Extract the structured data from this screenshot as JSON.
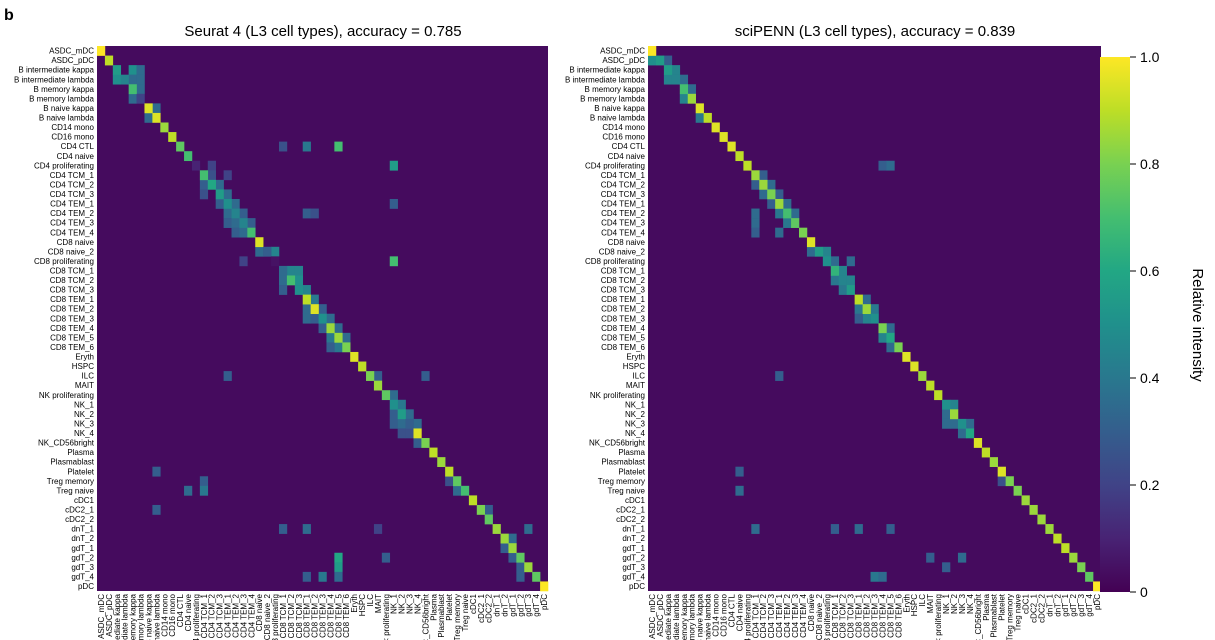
{
  "panel_label": "b",
  "colorbar": {
    "label": "Relative intensity",
    "ticks": [
      "1.0",
      "0.8",
      "0.6",
      "0.4",
      "0.2",
      "0"
    ],
    "tick_values": [
      1.0,
      0.8,
      0.6,
      0.4,
      0.2,
      0.0
    ],
    "range": [
      0,
      1
    ],
    "colormap": "viridis"
  },
  "chart_data": [
    {
      "type": "heatmap",
      "title": "Seurat 4 (L3 cell types), accuracy = 0.785",
      "labels": [
        "ASDC_mDC",
        "ASDC_pDC",
        "B intermediate kappa",
        "B intermediate lambda",
        "B memory kappa",
        "B memory lambda",
        "B naive kappa",
        "B naive lambda",
        "CD14 mono",
        "CD16 mono",
        "CD4 CTL",
        "CD4 naive",
        "CD4 proliferating",
        "CD4 TCM_1",
        "CD4 TCM_2",
        "CD4 TCM_3",
        "CD4 TEM_1",
        "CD4 TEM_2",
        "CD4 TEM_3",
        "CD4 TEM_4",
        "CD8 naive",
        "CD8 naive_2",
        "CD8 proliferating",
        "CD8 TCM_1",
        "CD8 TCM_2",
        "CD8 TCM_3",
        "CD8 TEM_1",
        "CD8 TEM_2",
        "CD8 TEM_3",
        "CD8 TEM_4",
        "CD8 TEM_5",
        "CD8 TEM_6",
        "Eryth",
        "HSPC",
        "ILC",
        "MAIT",
        "NK proliferating",
        "NK_1",
        "NK_2",
        "NK_3",
        "NK_4",
        "NK_CD56bright",
        "Plasma",
        "Plasmablast",
        "Platelet",
        "Treg memory",
        "Treg naive",
        "cDC1",
        "cDC2_1",
        "cDC2_2",
        "dnT_1",
        "dnT_2",
        "gdT_1",
        "gdT_2",
        "gdT_3",
        "gdT_4",
        "pDC"
      ],
      "xlabels_visible": [
        "ASDC_mDC",
        "ASDC_pDC",
        "ediate kappa",
        "ediate lambda",
        "emory kappa",
        "emory lambda",
        "3 naive kappa",
        "naive lambda",
        "CD14 mono",
        "CD16 mono",
        "CD4 CTL",
        "CD4 naive",
        "4 proliferating",
        "CD4 TCM_1",
        "CD4 TCM_2",
        "CD4 TCM_3",
        "CD4 TEM_1",
        "CD4 TEM_2",
        "CD4 TEM_3",
        "CD4 TEM_4",
        "CD8 naive",
        "CD8 naive_2",
        "3 proliferating",
        "CD8 TCM_1",
        "CD8 TCM_2",
        "CD8 TCM_3",
        "CD8 TEM_1",
        "CD8 TEM_2",
        "CD8 TEM_3",
        "CD8 TEM_4",
        "CD8 TEM_5",
        "CD8 TEM_6",
        "Eryth",
        "HSPC",
        "ILC",
        "MAIT",
        "< proliferating",
        "NK_1",
        "NK_2",
        "NK_3",
        "NK_4",
        "<_CD56bright",
        "Plasma",
        "Plasmablast",
        "Platelet",
        "Treg memory",
        "Treg naive",
        "cDC1",
        "cDC2_1",
        "cDC2_2",
        "dnT_1",
        "dnT_2",
        "gdT_1",
        "gdT_2",
        "gdT_3",
        "gdT_4",
        "pDC"
      ],
      "diagonal": [
        1.0,
        0.9,
        0.55,
        0.45,
        0.7,
        0.2,
        0.95,
        0.95,
        0.85,
        0.9,
        0.75,
        0.7,
        0.1,
        0.7,
        0.6,
        0.55,
        0.5,
        0.45,
        0.45,
        0.7,
        0.95,
        0.3,
        0.05,
        0.35,
        0.7,
        0.5,
        0.9,
        0.95,
        0.5,
        0.85,
        0.85,
        0.8,
        0.95,
        0.9,
        0.8,
        0.85,
        0.75,
        0.5,
        0.55,
        0.3,
        0.95,
        0.8,
        0.9,
        0.85,
        0.9,
        0.75,
        0.7,
        0.9,
        0.8,
        0.75,
        0.85,
        0.85,
        0.85,
        0.75,
        0.85,
        0.75,
        1.0
      ],
      "offdiag": [
        [
          2,
          4,
          0.5
        ],
        [
          2,
          5,
          0.35
        ],
        [
          3,
          2,
          0.5
        ],
        [
          3,
          4,
          0.35
        ],
        [
          3,
          5,
          0.35
        ],
        [
          4,
          5,
          0.35
        ],
        [
          5,
          4,
          0.35
        ],
        [
          6,
          7,
          0.35
        ],
        [
          7,
          6,
          0.35
        ],
        [
          10,
          23,
          0.25
        ],
        [
          10,
          26,
          0.4
        ],
        [
          10,
          30,
          0.7
        ],
        [
          12,
          37,
          0.55
        ],
        [
          12,
          14,
          0.2
        ],
        [
          13,
          14,
          0.25
        ],
        [
          13,
          16,
          0.2
        ],
        [
          14,
          13,
          0.3
        ],
        [
          14,
          15,
          0.35
        ],
        [
          15,
          13,
          0.25
        ],
        [
          15,
          16,
          0.35
        ],
        [
          16,
          15,
          0.3
        ],
        [
          16,
          17,
          0.35
        ],
        [
          16,
          37,
          0.3
        ],
        [
          17,
          16,
          0.35
        ],
        [
          17,
          18,
          0.3
        ],
        [
          17,
          26,
          0.3
        ],
        [
          17,
          27,
          0.25
        ],
        [
          18,
          16,
          0.3
        ],
        [
          18,
          17,
          0.35
        ],
        [
          18,
          19,
          0.3
        ],
        [
          19,
          17,
          0.3
        ],
        [
          19,
          18,
          0.35
        ],
        [
          21,
          20,
          0.35
        ],
        [
          21,
          22,
          0.45
        ],
        [
          22,
          37,
          0.7
        ],
        [
          22,
          18,
          0.2
        ],
        [
          23,
          24,
          0.45
        ],
        [
          23,
          25,
          0.45
        ],
        [
          24,
          23,
          0.35
        ],
        [
          24,
          25,
          0.5
        ],
        [
          25,
          23,
          0.3
        ],
        [
          25,
          26,
          0.45
        ],
        [
          26,
          27,
          0.4
        ],
        [
          27,
          26,
          0.35
        ],
        [
          27,
          28,
          0.3
        ],
        [
          28,
          26,
          0.35
        ],
        [
          28,
          27,
          0.3
        ],
        [
          28,
          29,
          0.35
        ],
        [
          29,
          28,
          0.3
        ],
        [
          29,
          30,
          0.35
        ],
        [
          30,
          29,
          0.4
        ],
        [
          30,
          31,
          0.35
        ],
        [
          31,
          30,
          0.4
        ],
        [
          31,
          29,
          0.3
        ],
        [
          34,
          16,
          0.3
        ],
        [
          34,
          35,
          0.3
        ],
        [
          34,
          41,
          0.3
        ],
        [
          36,
          37,
          0.35
        ],
        [
          37,
          38,
          0.4
        ],
        [
          38,
          37,
          0.3
        ],
        [
          38,
          39,
          0.35
        ],
        [
          39,
          37,
          0.3
        ],
        [
          39,
          38,
          0.35
        ],
        [
          39,
          40,
          0.35
        ],
        [
          40,
          38,
          0.25
        ],
        [
          40,
          39,
          0.25
        ],
        [
          41,
          40,
          0.3
        ],
        [
          44,
          7,
          0.3
        ],
        [
          45,
          13,
          0.3
        ],
        [
          45,
          44,
          0.25
        ],
        [
          46,
          11,
          0.35
        ],
        [
          46,
          13,
          0.4
        ],
        [
          46,
          45,
          0.35
        ],
        [
          48,
          7,
          0.3
        ],
        [
          48,
          49,
          0.3
        ],
        [
          50,
          26,
          0.35
        ],
        [
          50,
          23,
          0.3
        ],
        [
          50,
          54,
          0.35
        ],
        [
          50,
          35,
          0.2
        ],
        [
          51,
          52,
          0.35
        ],
        [
          52,
          51,
          0.3
        ],
        [
          53,
          30,
          0.6
        ],
        [
          53,
          36,
          0.3
        ],
        [
          53,
          52,
          0.3
        ],
        [
          54,
          30,
          0.55
        ],
        [
          54,
          53,
          0.3
        ],
        [
          55,
          28,
          0.4
        ],
        [
          55,
          30,
          0.35
        ],
        [
          55,
          26,
          0.3
        ],
        [
          55,
          53,
          0.3
        ]
      ]
    },
    {
      "type": "heatmap",
      "title": "sciPENN (L3 cell types), accuracy = 0.839",
      "labels": [
        "ASDC_mDC",
        "ASDC_pDC",
        "B intermediate kappa",
        "B intermediate lambda",
        "B memory kappa",
        "B memory lambda",
        "B naive kappa",
        "B naive lambda",
        "CD14 mono",
        "CD16 mono",
        "CD4 CTL",
        "CD4 naive",
        "CD4 proliferating",
        "CD4 TCM_1",
        "CD4 TCM_2",
        "CD4 TCM_3",
        "CD4 TEM_1",
        "CD4 TEM_2",
        "CD4 TEM_3",
        "CD4 TEM_4",
        "CD8 naive",
        "CD8 naive_2",
        "CD8 proliferating",
        "CD8 TCM_1",
        "CD8 TCM_2",
        "CD8 TCM_3",
        "CD8 TEM_1",
        "CD8 TEM_2",
        "CD8 TEM_3",
        "CD8 TEM_4",
        "CD8 TEM_5",
        "CD8 TEM_6",
        "Eryth",
        "HSPC",
        "ILC",
        "MAIT",
        "NK proliferating",
        "NK_1",
        "NK_2",
        "NK_3",
        "NK_4",
        "NK_CD56bright",
        "Plasma",
        "Plasmablast",
        "Platelet",
        "Treg memory",
        "Treg naive",
        "cDC1",
        "cDC2_1",
        "cDC2_2",
        "dnT_1",
        "dnT_2",
        "gdT_1",
        "gdT_2",
        "gdT_3",
        "gdT_4",
        "pDC"
      ],
      "xlabels_visible": [
        "ASDC_mDC",
        "ASDC_pDC",
        "ediate kappa",
        "ediate lambda",
        "emory kappa",
        "emory lambda",
        "3 naive kappa",
        "naive lambda",
        "CD14 mono",
        "CD16 mono",
        "CD4 CTL",
        "CD4 naive",
        "4 proliferating",
        "CD4 TCM_1",
        "CD4 TCM_2",
        "CD4 TCM_3",
        "CD4 TEM_1",
        "CD4 TEM_2",
        "CD4 TEM_3",
        "CD4 TEM_4",
        "CD8 naive",
        "CD8 naive_2",
        "3 proliferating",
        "CD8 TCM_1",
        "CD8 TCM_2",
        "CD8 TCM_3",
        "CD8 TEM_1",
        "CD8 TEM_2",
        "CD8 TEM_3",
        "CD8 TEM_4",
        "CD8 TEM_5",
        "CD8 TEM_6",
        "Eryth",
        "HSPC",
        "ILC",
        "MAIT",
        "< proliferating",
        "NK_1",
        "NK_2",
        "NK_3",
        "NK_4",
        "<_CD56bright",
        "Plasma",
        "Plasmablast",
        "Platelet",
        "Treg memory",
        "Treg naive",
        "cDC1",
        "cDC2_1",
        "cDC2_2",
        "dnT_1",
        "dnT_2",
        "gdT_1",
        "gdT_2",
        "gdT_3",
        "gdT_4",
        "pDC"
      ],
      "diagonal": [
        1.0,
        0.55,
        0.55,
        0.45,
        0.7,
        0.85,
        0.95,
        0.9,
        0.95,
        0.95,
        0.95,
        0.9,
        0.9,
        0.85,
        0.85,
        0.8,
        0.85,
        0.7,
        0.75,
        0.8,
        0.95,
        0.55,
        0.5,
        0.65,
        0.45,
        0.55,
        0.9,
        0.85,
        0.5,
        0.8,
        0.6,
        0.8,
        0.95,
        0.95,
        0.85,
        0.9,
        0.9,
        0.5,
        0.85,
        0.5,
        0.6,
        0.95,
        0.9,
        0.85,
        0.95,
        0.8,
        0.8,
        0.85,
        0.85,
        0.85,
        0.85,
        0.9,
        0.9,
        0.85,
        0.8,
        0.75,
        1.0
      ],
      "offdiag": [
        [
          1,
          0,
          0.5
        ],
        [
          1,
          2,
          0.3
        ],
        [
          2,
          3,
          0.45
        ],
        [
          3,
          2,
          0.45
        ],
        [
          3,
          4,
          0.35
        ],
        [
          4,
          5,
          0.35
        ],
        [
          5,
          4,
          0.45
        ],
        [
          7,
          6,
          0.4
        ],
        [
          12,
          29,
          0.3
        ],
        [
          12,
          30,
          0.35
        ],
        [
          13,
          14,
          0.3
        ],
        [
          14,
          13,
          0.3
        ],
        [
          14,
          15,
          0.35
        ],
        [
          15,
          14,
          0.35
        ],
        [
          15,
          16,
          0.3
        ],
        [
          16,
          15,
          0.3
        ],
        [
          16,
          17,
          0.35
        ],
        [
          17,
          16,
          0.4
        ],
        [
          17,
          18,
          0.35
        ],
        [
          17,
          13,
          0.35
        ],
        [
          18,
          13,
          0.35
        ],
        [
          18,
          17,
          0.4
        ],
        [
          19,
          13,
          0.3
        ],
        [
          19,
          16,
          0.35
        ],
        [
          21,
          20,
          0.35
        ],
        [
          21,
          22,
          0.45
        ],
        [
          22,
          23,
          0.35
        ],
        [
          22,
          25,
          0.35
        ],
        [
          23,
          24,
          0.45
        ],
        [
          24,
          23,
          0.4
        ],
        [
          24,
          25,
          0.45
        ],
        [
          25,
          24,
          0.4
        ],
        [
          26,
          27,
          0.35
        ],
        [
          27,
          26,
          0.4
        ],
        [
          27,
          28,
          0.4
        ],
        [
          28,
          27,
          0.45
        ],
        [
          28,
          26,
          0.3
        ],
        [
          29,
          30,
          0.35
        ],
        [
          30,
          29,
          0.45
        ],
        [
          31,
          30,
          0.35
        ],
        [
          34,
          16,
          0.3
        ],
        [
          37,
          38,
          0.45
        ],
        [
          38,
          37,
          0.35
        ],
        [
          39,
          37,
          0.35
        ],
        [
          39,
          38,
          0.35
        ],
        [
          39,
          40,
          0.35
        ],
        [
          40,
          39,
          0.35
        ],
        [
          44,
          11,
          0.3
        ],
        [
          45,
          44,
          0.25
        ],
        [
          46,
          11,
          0.35
        ],
        [
          50,
          13,
          0.35
        ],
        [
          50,
          23,
          0.3
        ],
        [
          50,
          26,
          0.35
        ],
        [
          50,
          30,
          0.3
        ],
        [
          53,
          35,
          0.3
        ],
        [
          53,
          39,
          0.35
        ],
        [
          54,
          37,
          0.3
        ],
        [
          55,
          28,
          0.4
        ],
        [
          55,
          29,
          0.35
        ]
      ]
    }
  ]
}
